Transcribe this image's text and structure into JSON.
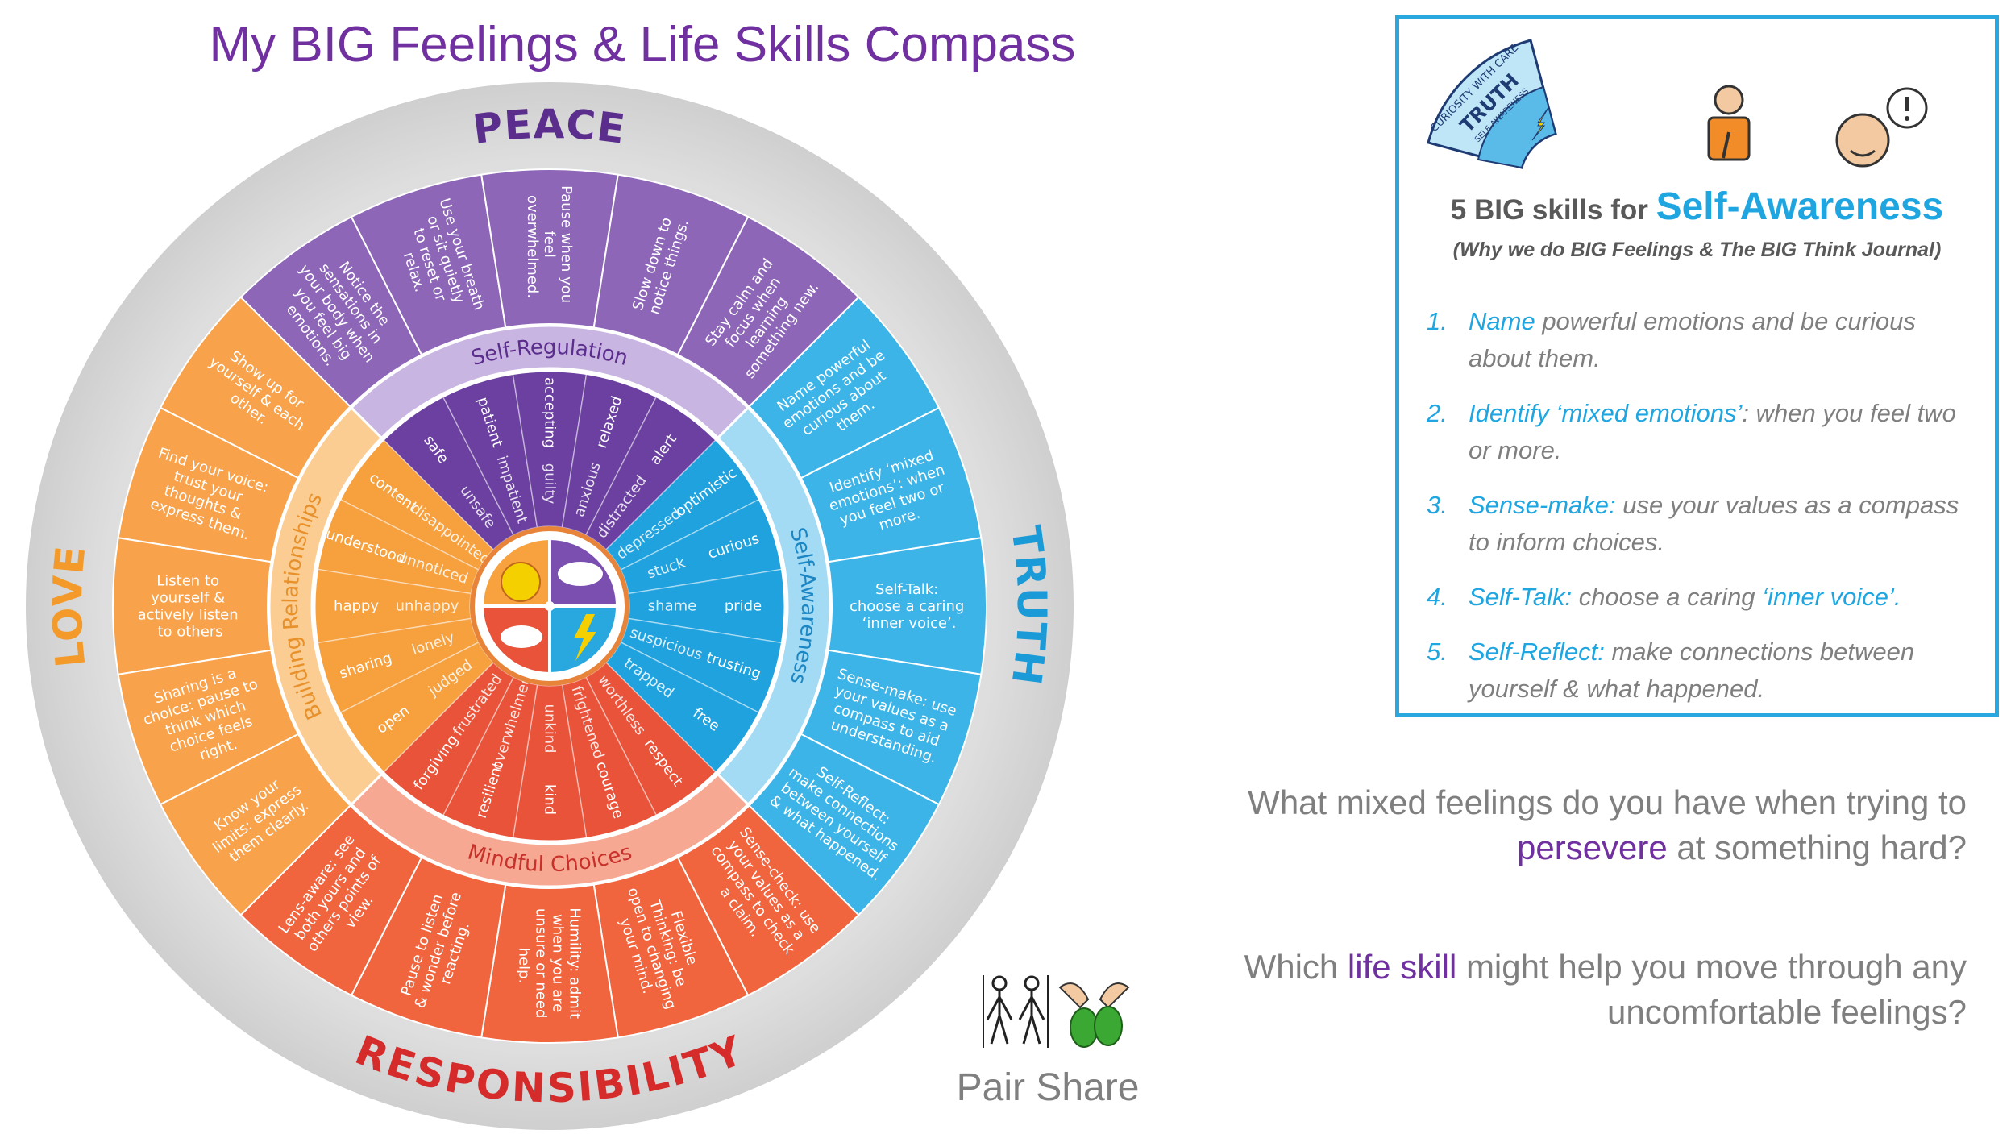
{
  "title": "My BIG Feelings & Life Skills Compass",
  "compass": {
    "quadrants": [
      {
        "value": "PEACE",
        "skill": "Self-Regulation",
        "segments": [
          "Notice the sensations in your body when you feel big emotions.",
          "Use your breath or sit quietly to reset or relax.",
          "Pause when you feel overwhelmed.",
          "Slow down to notice things.",
          "Stay calm and focus when learning something new."
        ],
        "feelings": [
          [
            "safe",
            "unsafe"
          ],
          [
            "patient",
            "impatient"
          ],
          [
            "accepting",
            "guilty"
          ],
          [
            "relaxed",
            "anxious"
          ],
          [
            "alert",
            "distracted"
          ]
        ]
      },
      {
        "value": "TRUTH",
        "skill": "Self-Awareness",
        "segments": [
          "Name powerful emotions and be curious about them.",
          "Identify ‘mixed emotions’: when you feel two or more.",
          "Self-Talk: choose a caring ‘inner voice’.",
          "Sense-make: use your values as a compass to aid understanding.",
          "Self-Reflect: make connections between yourself & what happened."
        ],
        "feelings": [
          [
            "optimistic",
            "depressed"
          ],
          [
            "curious",
            "stuck"
          ],
          [
            "pride",
            "shame"
          ],
          [
            "trusting",
            "suspicious"
          ],
          [
            "free",
            "trapped"
          ]
        ]
      },
      {
        "value": "RESPONSIBILITY",
        "skill": "Mindful Choices",
        "segments": [
          "Sense-check: use your values as a compass to check a claim.",
          "Flexible Thinking: be open to changing your mind.",
          "Humility: admit when you are unsure or need help.",
          "Pause to listen & wonder before reacting.",
          "Lens-aware: see both yours and others points of view."
        ],
        "feelings": [
          [
            "respect",
            "worthless"
          ],
          [
            "courage",
            "frightened"
          ],
          [
            "kind",
            "unkind"
          ],
          [
            "resilient",
            "overwhelmed"
          ],
          [
            "forgiving",
            "frustrated"
          ]
        ]
      },
      {
        "value": "LOVE",
        "skill": "Building Relationships",
        "segments": [
          "Show up for yourself & each other.",
          "Find your voice: trust your thoughts & express them.",
          "Listen to yourself & actively listen to others",
          "Sharing is a choice: pause to think which choice feels right.",
          "Know your limits: express them clearly."
        ],
        "feelings": [
          [
            "content",
            "disappointed"
          ],
          [
            "understood",
            "unnoticed"
          ],
          [
            "happy",
            "unhappy"
          ],
          [
            "sharing",
            "lonely"
          ],
          [
            "open",
            "judged"
          ]
        ]
      }
    ]
  },
  "panel": {
    "badge": [
      "CURIOSITY WITH CARE",
      "TRUTH",
      "SELF-AWARENESS"
    ],
    "heading": "5 BIG skills for",
    "heading_highlight": "Self-Awareness",
    "subheading": "(Why we do BIG Feelings & The BIG Think Journal)",
    "items": [
      {
        "number": "1.",
        "parts": [
          "Name",
          " powerful emotions and be curious about them."
        ]
      },
      {
        "number": "2.",
        "parts": [
          "Identify ‘mixed emotions’",
          ": when you feel two or more."
        ]
      },
      {
        "number": "3.",
        "parts": [
          "Sense-make:",
          " use your values as a compass to inform choices."
        ]
      },
      {
        "number": "4.",
        "parts": [
          "Self-Talk:",
          " choose a caring ",
          "‘inner voice’."
        ]
      },
      {
        "number": "5.",
        "parts": [
          "Self-Reflect:",
          " make connections between yourself & what happened."
        ]
      }
    ]
  },
  "questions": [
    [
      "What mixed feelings do you have when trying to ",
      "persevere",
      " at something hard?"
    ],
    [
      "Which ",
      "life skill",
      " might help you move through any uncomfortable feelings?"
    ]
  ],
  "pair_share": "Pair Share"
}
